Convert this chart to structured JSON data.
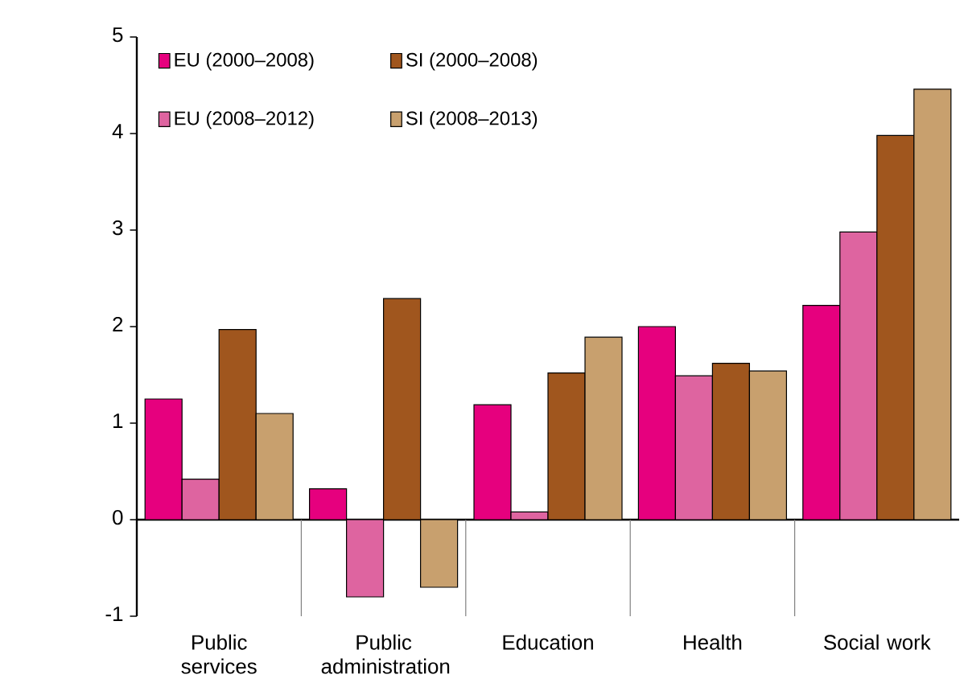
{
  "chart_data": {
    "type": "bar",
    "categories": [
      "Public services",
      "Public administration",
      "Education",
      "Health",
      "Social work"
    ],
    "series": [
      {
        "name": "EU (2000–2008)",
        "color": "#e6007e",
        "values": [
          1.25,
          0.32,
          1.19,
          2.0,
          2.22
        ]
      },
      {
        "name": "EU (2008–2012)",
        "color": "#de64a0",
        "values": [
          0.42,
          -0.8,
          0.08,
          1.49,
          2.98
        ]
      },
      {
        "name": "SI (2000–2008)",
        "color": "#a0561e",
        "values": [
          1.97,
          2.29,
          1.52,
          1.62,
          3.98
        ]
      },
      {
        "name": "SI (2008–2013)",
        "color": "#c8a06e",
        "values": [
          1.1,
          -0.7,
          1.89,
          1.54,
          4.46
        ]
      }
    ],
    "ylim": [
      -1,
      5
    ],
    "yticks": [
      -1,
      0,
      1,
      2,
      3,
      4,
      5
    ],
    "legend": "top left"
  }
}
